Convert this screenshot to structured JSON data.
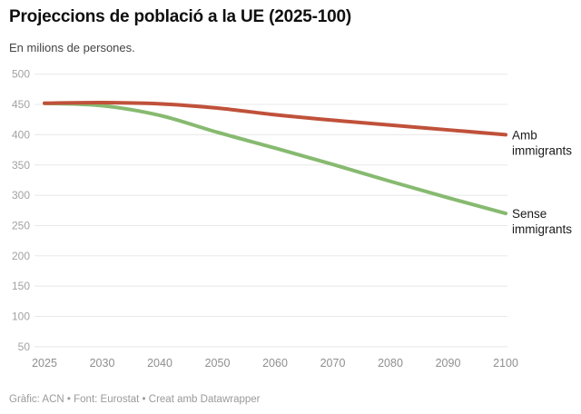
{
  "footer": {
    "attribution": "Gràfic: ACN • Font: Eurostat • Creat amb Datawrapper"
  },
  "chart_data": {
    "type": "line",
    "title": "Projeccions de població a la UE (2025-100)",
    "subtitle": "En milions de persones.",
    "x": [
      2025,
      2030,
      2040,
      2050,
      2060,
      2070,
      2080,
      2090,
      2100
    ],
    "x_tick_labels": [
      "2025",
      "2030",
      "2040",
      "2050",
      "2060",
      "2070",
      "2080",
      "2090",
      "2100"
    ],
    "y_ticks": [
      500,
      450,
      400,
      350,
      300,
      250,
      200,
      150,
      100,
      50
    ],
    "ylim": [
      50,
      500
    ],
    "xlabel": "",
    "ylabel": "",
    "grid": "horizontal",
    "legend_position": "right-of-line-end",
    "colors": {
      "with_immigrants": "#c0513a",
      "without_immigrants": "#87ba70",
      "gridline": "#e8e8e8",
      "axis_text": "#9b9b9b"
    },
    "series": [
      {
        "id": "sense-immigrants",
        "name": "Sense immigrants",
        "label_lines": [
          "Sense",
          "immigrants"
        ],
        "color": "#87ba70",
        "values": [
          452,
          448,
          432,
          404,
          378,
          351,
          323,
          296,
          270
        ]
      },
      {
        "id": "amb-immigrants",
        "name": "Amb immigrants",
        "label_lines": [
          "Amb",
          "immigrants"
        ],
        "color": "#c0513a",
        "values": [
          452,
          453,
          451,
          444,
          433,
          424,
          416,
          408,
          400
        ]
      }
    ]
  }
}
